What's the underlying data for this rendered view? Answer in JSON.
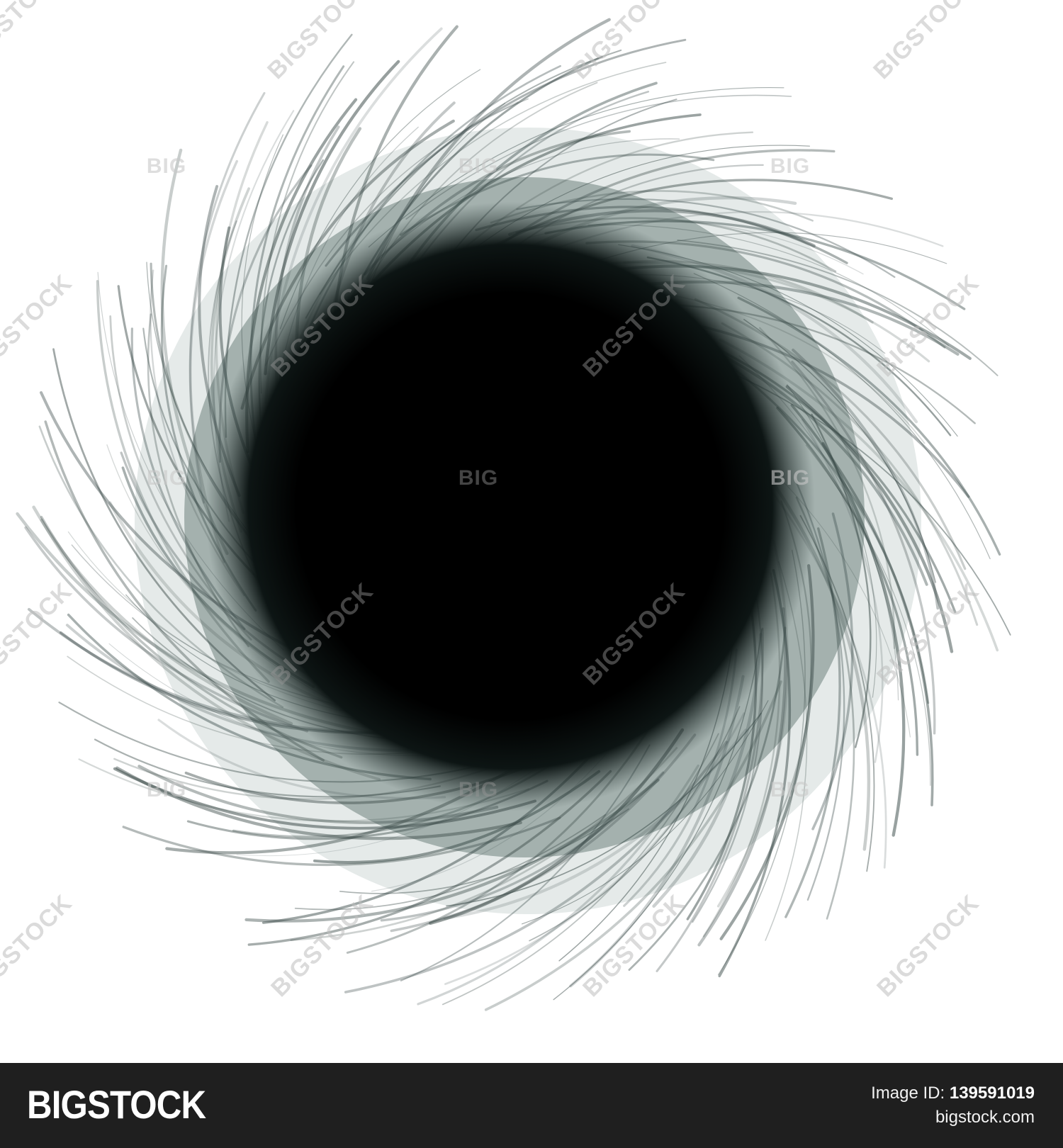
{
  "image": {
    "subject": "abstract dark swirl vortex illustration",
    "colors": {
      "background": "#ffffff",
      "core": "#000000",
      "stroke": "#3a4a48",
      "haze": "#b4c2bf",
      "footer": "#1f1f1f"
    }
  },
  "watermark": {
    "label": "BIGSTOCK",
    "short_label": "BIG"
  },
  "footer": {
    "brand": "BIGSTOCK",
    "image_id_label": "Image ID:",
    "image_id": "139591019",
    "site": "bigstock.com"
  }
}
